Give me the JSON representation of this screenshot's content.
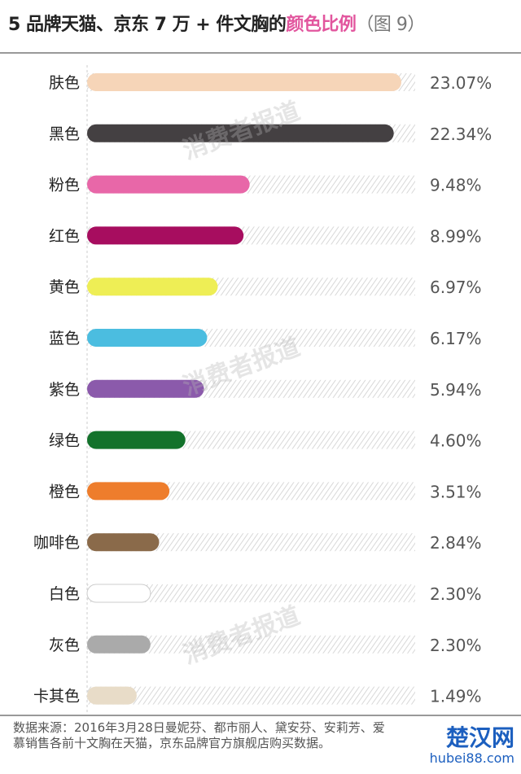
{
  "title": {
    "main": "5 品牌天猫、京东 7 万 + 件文胸的",
    "highlight": "颜色比例",
    "tail": "（图 9）"
  },
  "chart_data": {
    "type": "bar",
    "orientation": "horizontal",
    "categories": [
      "肤色",
      "黑色",
      "粉色",
      "红色",
      "黄色",
      "蓝色",
      "紫色",
      "绿色",
      "橙色",
      "咖啡色",
      "白色",
      "灰色",
      "卡其色"
    ],
    "values": [
      23.07,
      22.34,
      9.48,
      8.99,
      6.97,
      6.17,
      5.94,
      4.6,
      3.51,
      2.84,
      2.3,
      2.3,
      1.49
    ],
    "labels": [
      "23.07%",
      "22.34%",
      "9.48%",
      "8.99%",
      "6.97%",
      "6.17%",
      "5.94%",
      "4.60%",
      "3.51%",
      "2.84%",
      "2.30%",
      "2.30%",
      "1.49%"
    ],
    "colors": [
      "#f6d5b8",
      "#444042",
      "#e867a8",
      "#a70d5f",
      "#eeee55",
      "#4bbde0",
      "#8b5aab",
      "#13722b",
      "#ee7d2c",
      "#8a6a4a",
      "#ffffff",
      "#aaaaaa",
      "#e8dcc8"
    ],
    "unit": "%"
  },
  "watermark": "消费者报道",
  "footer": {
    "source": "数据来源：2016年3月28日曼妮芬、都市丽人、黛安芬、安莉芳、爱慕销售各前十文胸在天猫，京东品牌官方旗舰店购买数据。"
  },
  "logo": {
    "cn": "楚汉网",
    "en": "hubei88.com"
  }
}
